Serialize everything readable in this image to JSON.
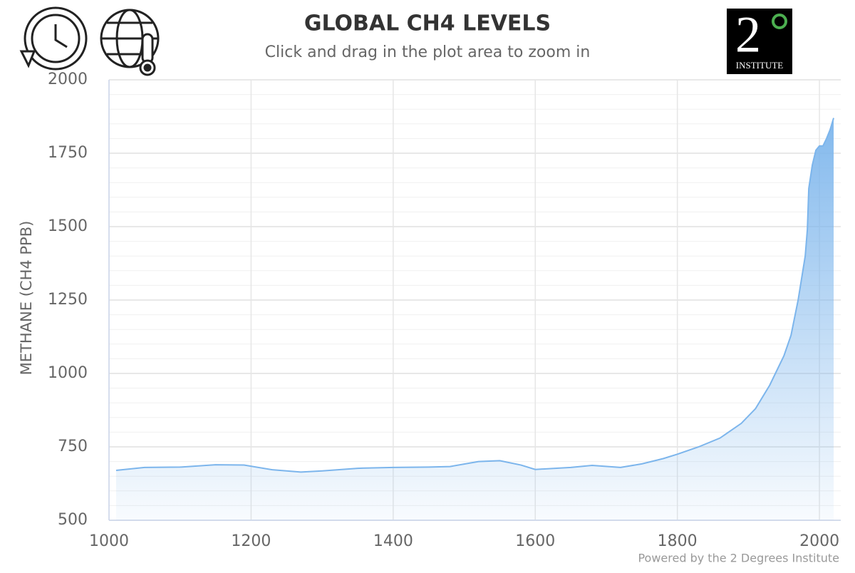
{
  "chart_data": {
    "type": "area",
    "title": "GLOBAL CH4 LEVELS",
    "subtitle": "Click and drag in the plot area to zoom in",
    "y_label": "METHANE (CH4 PPB)",
    "credits": "Powered by the 2 Degrees Institute",
    "x": [
      1010,
      1050,
      1100,
      1150,
      1190,
      1230,
      1270,
      1300,
      1350,
      1400,
      1450,
      1480,
      1520,
      1550,
      1580,
      1600,
      1650,
      1680,
      1720,
      1750,
      1780,
      1800,
      1830,
      1860,
      1890,
      1910,
      1930,
      1950,
      1960,
      1970,
      1980,
      1983,
      1985,
      1990,
      1995,
      2000,
      2005,
      2010,
      2015,
      2020
    ],
    "series": [
      {
        "name": "Methane",
        "color": "#7cb5ec",
        "values": [
          670,
          680,
          681,
          689,
          688,
          672,
          664,
          668,
          677,
          680,
          681,
          683,
          700,
          703,
          688,
          673,
          680,
          687,
          680,
          692,
          710,
          725,
          750,
          780,
          830,
          880,
          960,
          1060,
          1130,
          1250,
          1400,
          1490,
          1630,
          1710,
          1760,
          1775,
          1775,
          1800,
          1830,
          1870
        ]
      }
    ],
    "xlim": [
      1000,
      2030
    ],
    "xticks": [
      1000,
      1200,
      1400,
      1600,
      1800,
      2000
    ],
    "ylim": [
      500,
      2000
    ],
    "yticks": [
      500,
      750,
      1000,
      1250,
      1500,
      1750,
      2000
    ],
    "yminorticks": [
      550,
      600,
      650,
      700,
      800,
      850,
      900,
      950,
      1050,
      1100,
      1150,
      1200,
      1300,
      1350,
      1400,
      1450,
      1550,
      1600,
      1650,
      1700,
      1800,
      1850,
      1900,
      1950
    ],
    "grid": true
  },
  "logo": {
    "numeral": "2",
    "text": "INSTITUTE"
  }
}
